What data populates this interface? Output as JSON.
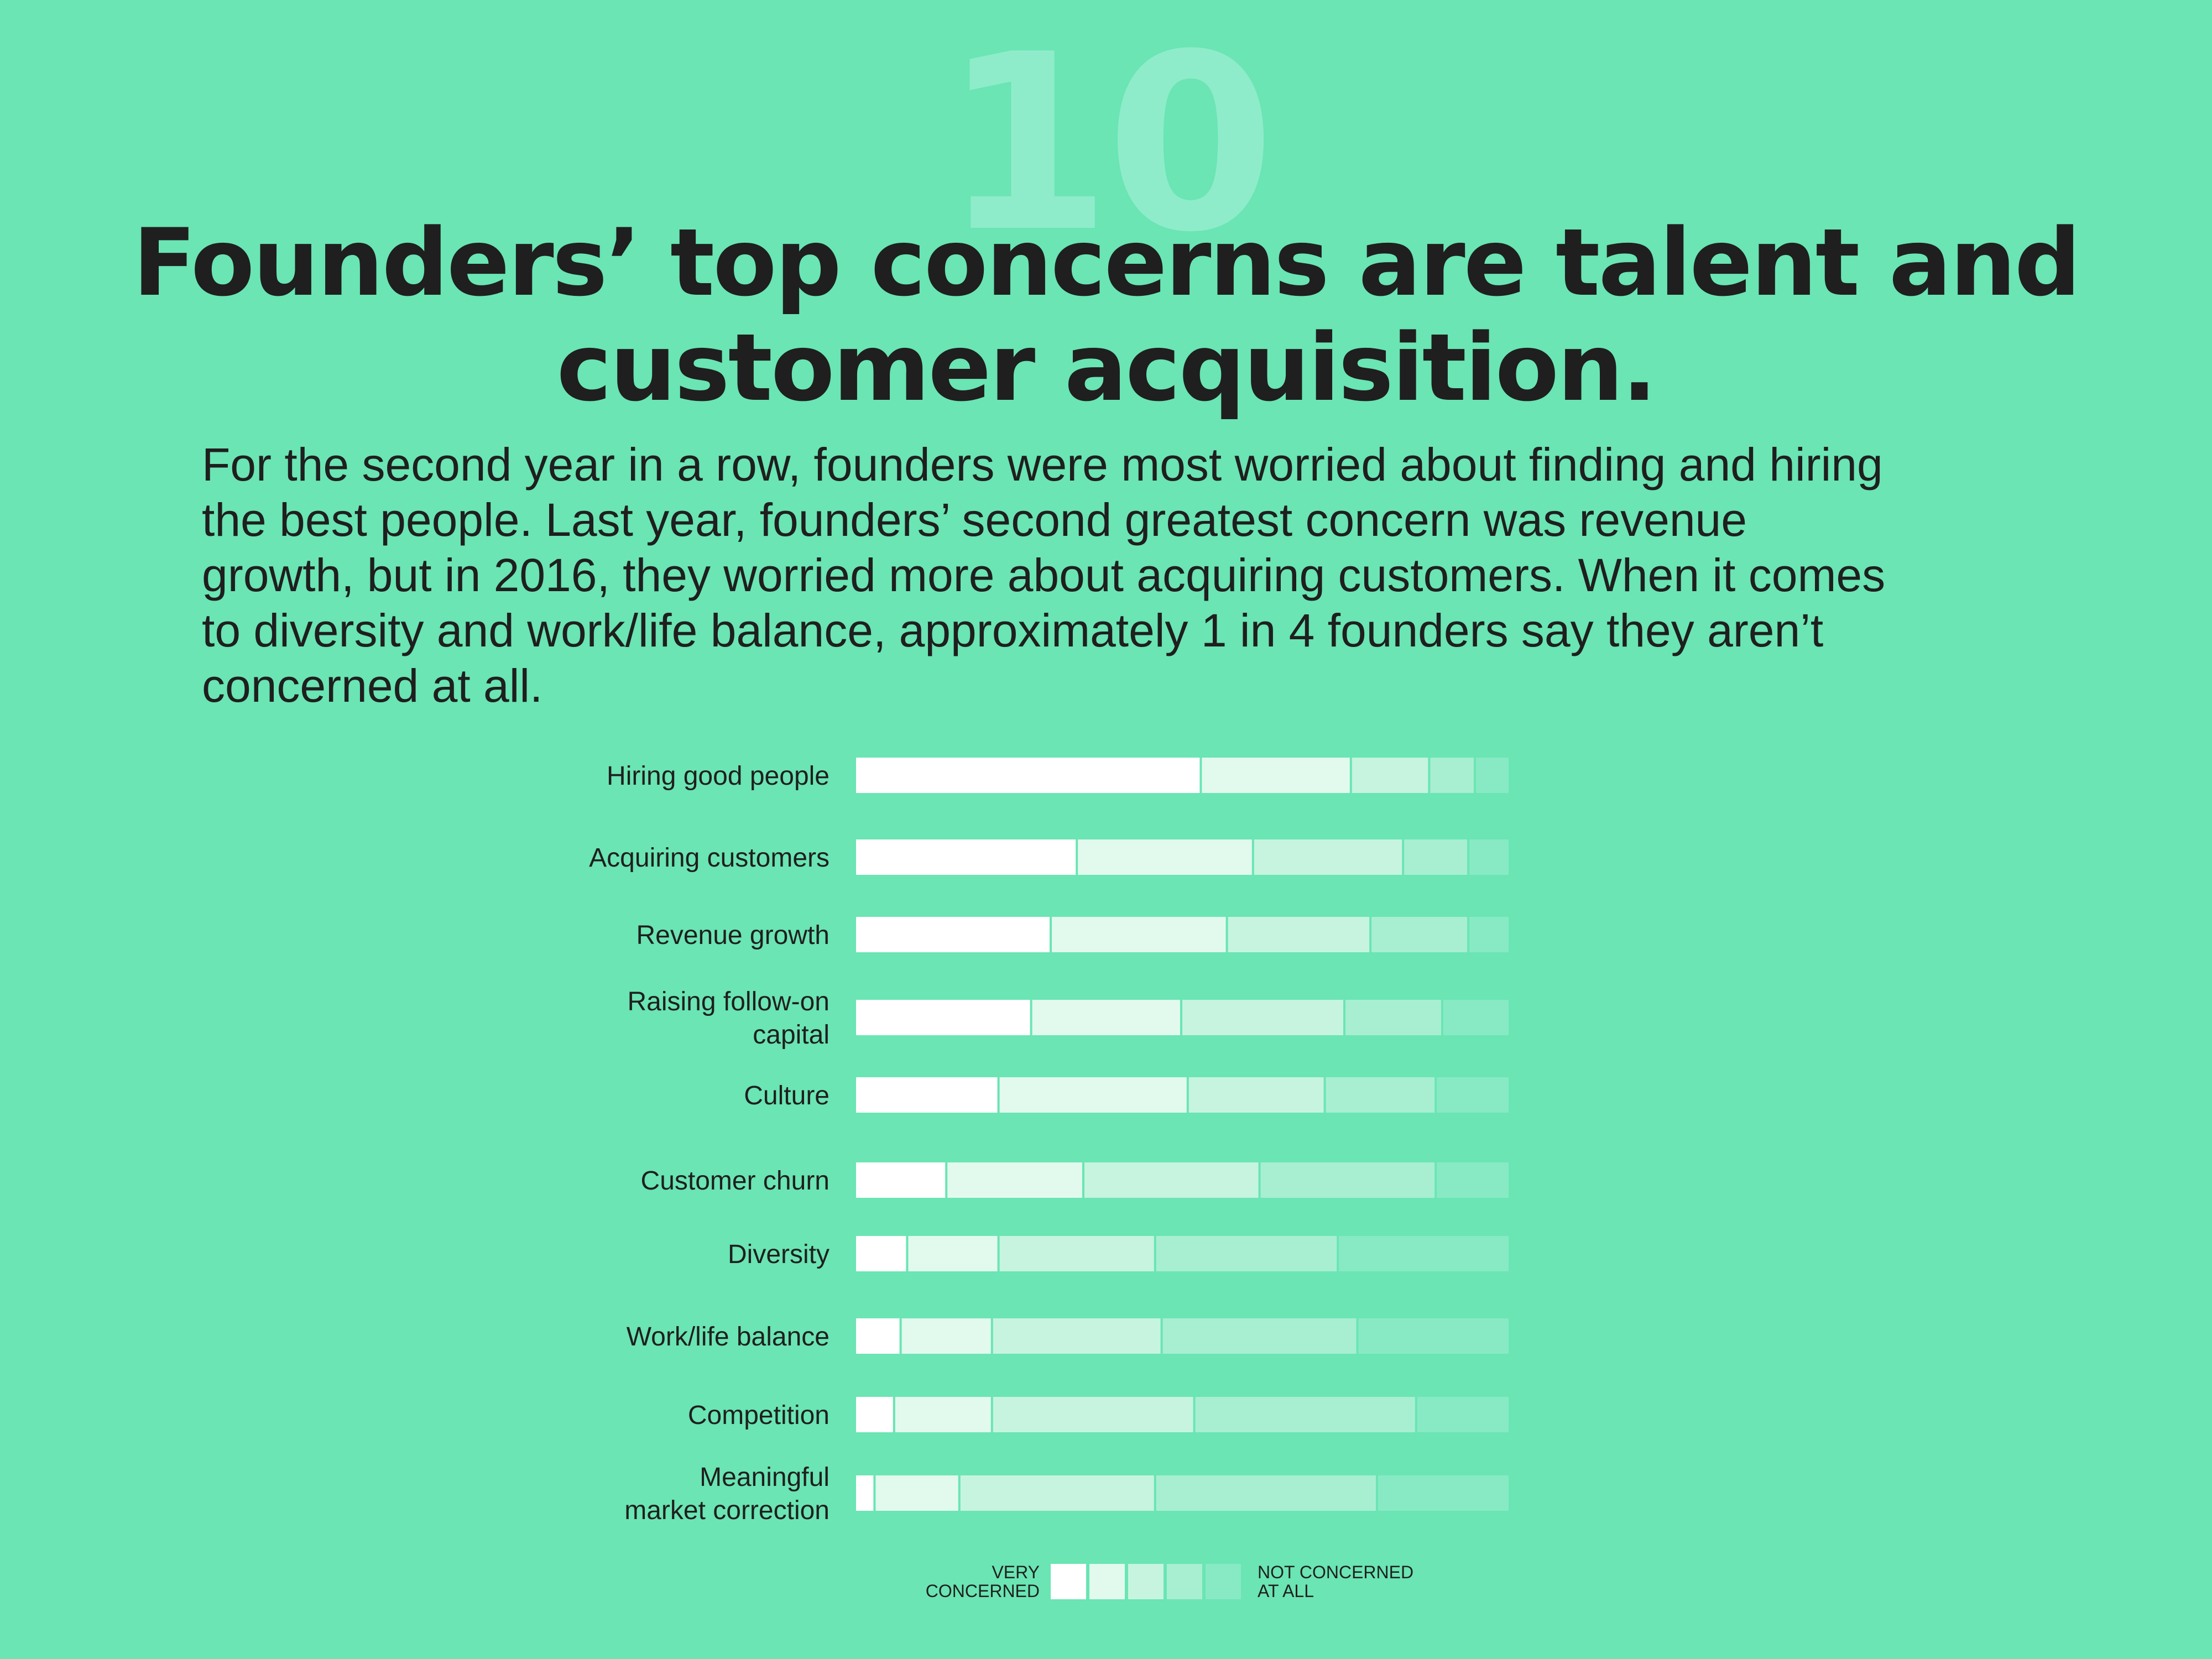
{
  "section_number": "10",
  "title_lines": [
    "Founders’ top concerns are talent and",
    "customer acquisition."
  ],
  "intro_lines": [
    "For the second year in a row, founders were most worried about finding and hiring",
    "the best people. Last year, founders’ second greatest concern was revenue",
    "growth, but in 2016, they worried more about acquiring customers. When it comes",
    "to diversity and work/life balance, approximately 1 in 4 founders say they aren’t",
    "concerned at all."
  ],
  "colors": {
    "background": "#6ae5b3",
    "text": "#1f1f1f",
    "levels": [
      "#ffffff",
      "#e2f9ee",
      "#c6f4df",
      "#a8efd2",
      "#88eac4"
    ]
  },
  "chart_data": {
    "type": "bar",
    "stacked": true,
    "orientation": "horizontal",
    "unit": "%",
    "xlim": [
      0,
      100
    ],
    "categories": [
      [
        "Hiring good people"
      ],
      [
        "Acquiring customers"
      ],
      [
        "Revenue growth"
      ],
      [
        "Raising follow-on",
        "capital"
      ],
      [
        "Culture"
      ],
      [
        "Customer churn"
      ],
      [
        "Diversity"
      ],
      [
        "Work/life balance"
      ],
      [
        "Competition"
      ],
      [
        "Meaningful",
        "market correction"
      ]
    ],
    "series": [
      {
        "level": 1,
        "values": [
          53,
          34,
          30,
          27,
          22,
          14,
          8,
          7,
          6,
          3
        ]
      },
      {
        "level": 2,
        "values": [
          23,
          27,
          27,
          23,
          29,
          21,
          14,
          14,
          15,
          13
        ]
      },
      {
        "level": 3,
        "values": [
          12,
          23,
          22,
          25,
          21,
          27,
          24,
          26,
          31,
          30
        ]
      },
      {
        "level": 4,
        "values": [
          7,
          10,
          15,
          15,
          17,
          27,
          28,
          30,
          34,
          34
        ]
      },
      {
        "level": 5,
        "values": [
          5,
          6,
          6,
          10,
          11,
          11,
          26,
          23,
          14,
          20
        ]
      }
    ],
    "legend": {
      "left_label": [
        "VERY",
        "CONCERNED"
      ],
      "right_label": [
        "NOT CONCERNED",
        "AT ALL"
      ],
      "placement": "bottom"
    }
  }
}
